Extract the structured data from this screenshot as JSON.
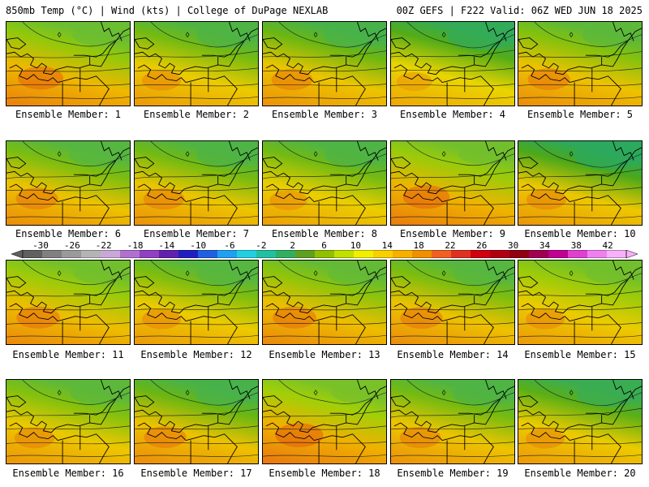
{
  "header": {
    "left": "850mb Temp (°C) | Wind (kts) | College of DuPage NEXLAB",
    "right": "00Z GEFS | F222 Valid: 06Z WED JUN 18 2025"
  },
  "caption_prefix": "Ensemble Member: ",
  "members": [
    {
      "id": "1",
      "caption": "Ensemble Member: 1",
      "warmth": 0.75,
      "north_green": 0.35
    },
    {
      "id": "2",
      "caption": "Ensemble Member: 2",
      "warmth": 0.45,
      "north_green": 0.55
    },
    {
      "id": "3",
      "caption": "Ensemble Member: 3",
      "warmth": 0.55,
      "north_green": 0.6
    },
    {
      "id": "4",
      "caption": "Ensemble Member: 4",
      "warmth": 0.3,
      "north_green": 0.75
    },
    {
      "id": "5",
      "caption": "Ensemble Member: 5",
      "warmth": 0.6,
      "north_green": 0.45
    },
    {
      "id": "6",
      "caption": "Ensemble Member: 6",
      "warmth": 0.6,
      "north_green": 0.5
    },
    {
      "id": "7",
      "caption": "Ensemble Member: 7",
      "warmth": 0.55,
      "north_green": 0.55
    },
    {
      "id": "8",
      "caption": "Ensemble Member: 8",
      "warmth": 0.4,
      "north_green": 0.55
    },
    {
      "id": "9",
      "caption": "Ensemble Member: 9",
      "warmth": 0.8,
      "north_green": 0.3
    },
    {
      "id": "10",
      "caption": "Ensemble Member: 10",
      "warmth": 0.5,
      "north_green": 0.8
    },
    {
      "id": "11",
      "caption": "Ensemble Member: 11",
      "warmth": 0.65,
      "north_green": 0.3
    },
    {
      "id": "12",
      "caption": "Ensemble Member: 12",
      "warmth": 0.45,
      "north_green": 0.5
    },
    {
      "id": "13",
      "caption": "Ensemble Member: 13",
      "warmth": 0.65,
      "north_green": 0.4
    },
    {
      "id": "14",
      "caption": "Ensemble Member: 14",
      "warmth": 0.6,
      "north_green": 0.5
    },
    {
      "id": "15",
      "caption": "Ensemble Member: 15",
      "warmth": 0.45,
      "north_green": 0.3
    },
    {
      "id": "16",
      "caption": "Ensemble Member: 16",
      "warmth": 0.5,
      "north_green": 0.45
    },
    {
      "id": "17",
      "caption": "Ensemble Member: 17",
      "warmth": 0.6,
      "north_green": 0.6
    },
    {
      "id": "18",
      "caption": "Ensemble Member: 18",
      "warmth": 0.85,
      "north_green": 0.25
    },
    {
      "id": "19",
      "caption": "Ensemble Member: 19",
      "warmth": 0.55,
      "north_green": 0.55
    },
    {
      "id": "20",
      "caption": "Ensemble Member: 20",
      "warmth": 0.45,
      "north_green": 0.7
    }
  ],
  "colorbar": {
    "labels": [
      "-30",
      "-26",
      "-22",
      "-18",
      "-14",
      "-10",
      "-6",
      "-2",
      "2",
      "6",
      "10",
      "14",
      "18",
      "22",
      "26",
      "30",
      "34",
      "38",
      "42"
    ],
    "colors": [
      "#606060",
      "#808080",
      "#9a9a9a",
      "#b4b4b4",
      "#c8a8d8",
      "#b070d0",
      "#9040c0",
      "#6020b0",
      "#2020c0",
      "#2060e0",
      "#20a0f0",
      "#20d0e0",
      "#20c0a0",
      "#30b060",
      "#60a020",
      "#90c000",
      "#c0e000",
      "#f0f000",
      "#f8d000",
      "#f8b000",
      "#f09000",
      "#f06020",
      "#e03020",
      "#d00010",
      "#b00010",
      "#900010",
      "#a00050",
      "#c00090",
      "#e040d0",
      "#f080f0",
      "#f8b0f8"
    ]
  }
}
